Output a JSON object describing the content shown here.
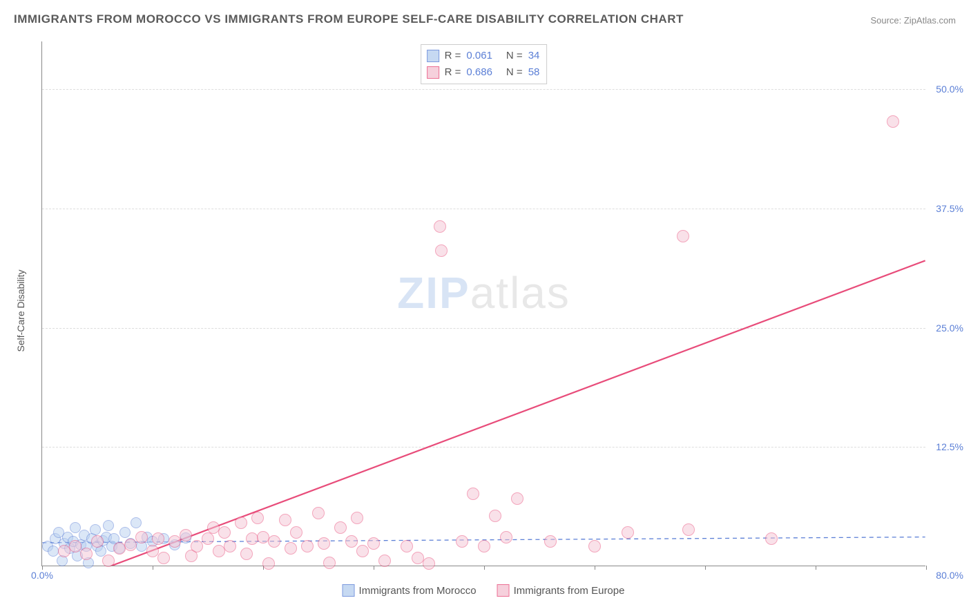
{
  "title": "IMMIGRANTS FROM MOROCCO VS IMMIGRANTS FROM EUROPE SELF-CARE DISABILITY CORRELATION CHART",
  "source": "Source: ZipAtlas.com",
  "ylabel": "Self-Care Disability",
  "watermark_bold": "ZIP",
  "watermark_light": "atlas",
  "chart": {
    "type": "scatter",
    "xlim": [
      0,
      80
    ],
    "ylim": [
      0,
      55
    ],
    "xtick_positions": [
      0,
      10,
      20,
      30,
      40,
      50,
      60,
      70,
      80
    ],
    "xtick_labels": {
      "0": "0.0%",
      "80": "80.0%"
    },
    "ytick_positions": [
      12.5,
      25.0,
      37.5,
      50.0
    ],
    "ytick_labels": [
      "12.5%",
      "25.0%",
      "37.5%",
      "50.0%"
    ],
    "grid_color": "#dddddd",
    "background_color": "#ffffff",
    "series": [
      {
        "name": "Immigrants from Morocco",
        "short": "morocco",
        "fill": "#b9d0f0",
        "stroke": "#5b7fd6",
        "fill_opacity": 0.5,
        "marker_radius": 8,
        "r_value": "0.061",
        "n_value": "34",
        "trend": {
          "x1": 0,
          "y1": 2.4,
          "x2": 80,
          "y2": 3.0,
          "dash": "6,5",
          "width": 1.3,
          "color": "#5b7fd6"
        },
        "points": [
          [
            0.5,
            2.0
          ],
          [
            1.0,
            1.5
          ],
          [
            1.2,
            2.8
          ],
          [
            1.5,
            3.5
          ],
          [
            1.8,
            0.5
          ],
          [
            2.0,
            2.3
          ],
          [
            2.3,
            3.0
          ],
          [
            2.5,
            1.8
          ],
          [
            2.8,
            2.5
          ],
          [
            3.0,
            4.0
          ],
          [
            3.2,
            1.0
          ],
          [
            3.5,
            2.2
          ],
          [
            3.8,
            3.2
          ],
          [
            4.0,
            2.0
          ],
          [
            4.2,
            0.3
          ],
          [
            4.5,
            2.8
          ],
          [
            4.8,
            3.8
          ],
          [
            5.0,
            2.0
          ],
          [
            5.3,
            1.5
          ],
          [
            5.5,
            2.6
          ],
          [
            5.8,
            3.0
          ],
          [
            6.0,
            4.2
          ],
          [
            6.3,
            2.0
          ],
          [
            6.5,
            2.8
          ],
          [
            7.0,
            1.8
          ],
          [
            7.5,
            3.5
          ],
          [
            8.0,
            2.3
          ],
          [
            8.5,
            4.5
          ],
          [
            9.0,
            2.0
          ],
          [
            9.5,
            3.0
          ],
          [
            10.0,
            2.5
          ],
          [
            11.0,
            2.8
          ],
          [
            12.0,
            2.2
          ],
          [
            13.0,
            2.9
          ]
        ]
      },
      {
        "name": "Immigrants from Europe",
        "short": "europe",
        "fill": "#f5c5d4",
        "stroke": "#e84c7a",
        "fill_opacity": 0.5,
        "marker_radius": 9,
        "r_value": "0.686",
        "n_value": "58",
        "trend": {
          "x1": 4,
          "y1": -1,
          "x2": 80,
          "y2": 32,
          "dash": "none",
          "width": 2.2,
          "color": "#e84c7a"
        },
        "points": [
          [
            2.0,
            1.5
          ],
          [
            3.0,
            2.0
          ],
          [
            4.0,
            1.2
          ],
          [
            5.0,
            2.5
          ],
          [
            6.0,
            0.5
          ],
          [
            7.0,
            1.8
          ],
          [
            8.0,
            2.2
          ],
          [
            9.0,
            3.0
          ],
          [
            10.0,
            1.5
          ],
          [
            10.5,
            2.8
          ],
          [
            11.0,
            0.8
          ],
          [
            12.0,
            2.5
          ],
          [
            13.0,
            3.2
          ],
          [
            13.5,
            1.0
          ],
          [
            14.0,
            2.0
          ],
          [
            15.0,
            2.8
          ],
          [
            15.5,
            4.0
          ],
          [
            16.0,
            1.5
          ],
          [
            16.5,
            3.5
          ],
          [
            17.0,
            2.0
          ],
          [
            18.0,
            4.5
          ],
          [
            18.5,
            1.2
          ],
          [
            19.0,
            2.8
          ],
          [
            19.5,
            5.0
          ],
          [
            20.0,
            3.0
          ],
          [
            20.5,
            0.2
          ],
          [
            21.0,
            2.5
          ],
          [
            22.0,
            4.8
          ],
          [
            22.5,
            1.8
          ],
          [
            23.0,
            3.5
          ],
          [
            24.0,
            2.0
          ],
          [
            25.0,
            5.5
          ],
          [
            25.5,
            2.3
          ],
          [
            26.0,
            0.3
          ],
          [
            27.0,
            4.0
          ],
          [
            28.0,
            2.5
          ],
          [
            28.5,
            5.0
          ],
          [
            29.0,
            1.5
          ],
          [
            30.0,
            2.3
          ],
          [
            31.0,
            0.5
          ],
          [
            33.0,
            2.0
          ],
          [
            34.0,
            0.8
          ],
          [
            36.0,
            35.5
          ],
          [
            36.1,
            33.0
          ],
          [
            38.0,
            2.5
          ],
          [
            39.0,
            7.5
          ],
          [
            40.0,
            2.0
          ],
          [
            41.0,
            5.2
          ],
          [
            42.0,
            3.0
          ],
          [
            43.0,
            7.0
          ],
          [
            46.0,
            2.5
          ],
          [
            50.0,
            2.0
          ],
          [
            53.0,
            3.5
          ],
          [
            58.0,
            34.5
          ],
          [
            58.5,
            3.8
          ],
          [
            66.0,
            2.8
          ],
          [
            77.0,
            46.5
          ],
          [
            35.0,
            0.2
          ]
        ]
      }
    ]
  },
  "colors": {
    "title": "#5a5a5a",
    "source": "#888888",
    "tick_label": "#5b7fd6",
    "axis_label": "#555555"
  }
}
